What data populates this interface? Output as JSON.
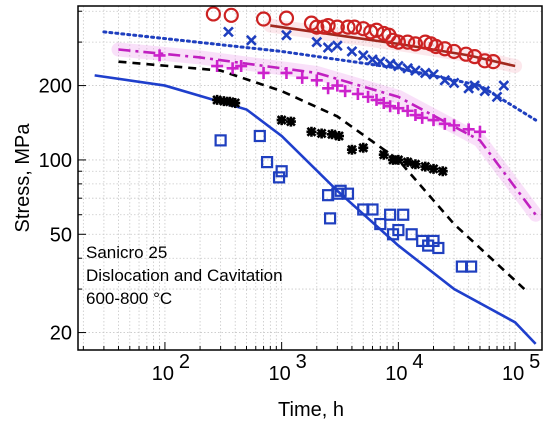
{
  "chart_data": {
    "type": "scatter",
    "title": "",
    "xlabel": "Time, h",
    "ylabel": "Stress, MPa",
    "x_scale": "log",
    "y_scale": "log",
    "xlim": [
      18,
      170000
    ],
    "ylim": [
      17,
      420
    ],
    "grid": true,
    "x_ticks": [
      {
        "value": 100,
        "base": "10",
        "exp": "2"
      },
      {
        "value": 1000,
        "base": "10",
        "exp": "3"
      },
      {
        "value": 10000,
        "base": "10",
        "exp": "4"
      },
      {
        "value": 100000,
        "base": "10",
        "exp": "5"
      }
    ],
    "y_ticks": [
      {
        "value": 20,
        "label": "20"
      },
      {
        "value": 50,
        "label": "50"
      },
      {
        "value": 100,
        "label": "100"
      },
      {
        "value": 200,
        "label": "200"
      }
    ],
    "annotation": [
      "Sanicro 25",
      "Dislocation and Cavitation",
      "600-800 °C"
    ],
    "series": [
      {
        "marker": "circle",
        "color": "#cc2222",
        "points": [
          [
            260,
            390
          ],
          [
            370,
            385
          ],
          [
            700,
            372
          ],
          [
            1100,
            375
          ],
          [
            1800,
            358
          ],
          [
            2000,
            345
          ],
          [
            2300,
            345
          ],
          [
            2500,
            350
          ],
          [
            3000,
            345
          ],
          [
            3700,
            345
          ],
          [
            4200,
            345
          ],
          [
            5000,
            340
          ],
          [
            5800,
            330
          ],
          [
            6500,
            335
          ],
          [
            7500,
            325
          ],
          [
            8300,
            320
          ],
          [
            9000,
            305
          ],
          [
            10000,
            300
          ],
          [
            12000,
            300
          ],
          [
            14000,
            295
          ],
          [
            17000,
            300
          ],
          [
            19000,
            295
          ],
          [
            21000,
            288
          ],
          [
            25000,
            282
          ],
          [
            30000,
            275
          ],
          [
            38000,
            268
          ],
          [
            45000,
            262
          ],
          [
            55000,
            252
          ],
          [
            65000,
            250
          ]
        ]
      },
      {
        "marker": "x",
        "color": "#1f3fbf",
        "points": [
          [
            350,
            330
          ],
          [
            550,
            305
          ],
          [
            1100,
            320
          ],
          [
            2000,
            300
          ],
          [
            2500,
            285
          ],
          [
            3000,
            290
          ],
          [
            4000,
            275
          ],
          [
            5000,
            265
          ],
          [
            6000,
            255
          ],
          [
            7000,
            250
          ],
          [
            8500,
            245
          ],
          [
            10000,
            240
          ],
          [
            12000,
            235
          ],
          [
            14000,
            230
          ],
          [
            17000,
            225
          ],
          [
            20000,
            222
          ],
          [
            25000,
            210
          ],
          [
            30000,
            205
          ],
          [
            40000,
            195
          ],
          [
            45000,
            200
          ],
          [
            55000,
            190
          ],
          [
            70000,
            180
          ],
          [
            80000,
            200
          ]
        ]
      },
      {
        "marker": "plus",
        "color": "#cc22cc",
        "points": [
          [
            90,
            265
          ],
          [
            280,
            240
          ],
          [
            380,
            235
          ],
          [
            450,
            240
          ],
          [
            700,
            225
          ],
          [
            1100,
            225
          ],
          [
            1500,
            215
          ],
          [
            2000,
            210
          ],
          [
            2500,
            195
          ],
          [
            3000,
            200
          ],
          [
            3500,
            190
          ],
          [
            4500,
            185
          ],
          [
            5500,
            180
          ],
          [
            6500,
            175
          ],
          [
            7500,
            170
          ],
          [
            8500,
            165
          ],
          [
            10000,
            162
          ],
          [
            12000,
            158
          ],
          [
            14000,
            152
          ],
          [
            16000,
            148
          ],
          [
            20000,
            145
          ],
          [
            25000,
            140
          ],
          [
            30000,
            138
          ],
          [
            40000,
            133
          ],
          [
            50000,
            130
          ]
        ]
      },
      {
        "marker": "asterisk",
        "color": "#000000",
        "points": [
          [
            280,
            175
          ],
          [
            320,
            173
          ],
          [
            360,
            172
          ],
          [
            400,
            170
          ],
          [
            1000,
            145
          ],
          [
            1200,
            143
          ],
          [
            1800,
            130
          ],
          [
            2200,
            128
          ],
          [
            2700,
            127
          ],
          [
            3100,
            125
          ],
          [
            4000,
            110
          ],
          [
            5000,
            112
          ],
          [
            7500,
            105
          ],
          [
            9000,
            100
          ],
          [
            10000,
            100
          ],
          [
            12000,
            98
          ],
          [
            14000,
            96
          ],
          [
            17000,
            94
          ],
          [
            20000,
            92
          ],
          [
            24000,
            90
          ]
        ]
      },
      {
        "marker": "square",
        "color": "#1f3fbf",
        "points": [
          [
            300,
            120
          ],
          [
            650,
            125
          ],
          [
            750,
            98
          ],
          [
            950,
            85
          ],
          [
            1000,
            90
          ],
          [
            2500,
            72
          ],
          [
            2600,
            58
          ],
          [
            3000,
            73
          ],
          [
            3200,
            75
          ],
          [
            3700,
            73
          ],
          [
            5000,
            63
          ],
          [
            6000,
            63
          ],
          [
            7000,
            55
          ],
          [
            8500,
            60
          ],
          [
            9000,
            50
          ],
          [
            10000,
            52
          ],
          [
            11000,
            60
          ],
          [
            13000,
            50
          ],
          [
            16000,
            47
          ],
          [
            18000,
            45
          ],
          [
            20000,
            47
          ],
          [
            22000,
            44
          ],
          [
            35000,
            37
          ],
          [
            42000,
            37
          ]
        ]
      }
    ],
    "lines": [
      {
        "style": "solid",
        "color": "#a0281e",
        "points": [
          [
            800,
            350
          ],
          [
            3000,
            320
          ],
          [
            10000,
            295
          ],
          [
            40000,
            265
          ],
          [
            100000,
            240
          ]
        ]
      },
      {
        "style": "dotted",
        "color": "#1f3fbf",
        "points": [
          [
            30,
            330
          ],
          [
            100,
            310
          ],
          [
            1000,
            275
          ],
          [
            10000,
            235
          ],
          [
            50000,
            200
          ],
          [
            150000,
            145
          ]
        ]
      },
      {
        "style": "dashdot",
        "color": "#c020c0",
        "points": [
          [
            40,
            280
          ],
          [
            200,
            260
          ],
          [
            2000,
            225
          ],
          [
            10000,
            180
          ],
          [
            50000,
            120
          ],
          [
            150000,
            60
          ]
        ]
      },
      {
        "style": "dashed",
        "color": "#000000",
        "points": [
          [
            40,
            250
          ],
          [
            300,
            230
          ],
          [
            1000,
            190
          ],
          [
            3000,
            150
          ],
          [
            10000,
            100
          ],
          [
            30000,
            55
          ],
          [
            120000,
            30
          ]
        ]
      },
      {
        "style": "solid",
        "color": "#1f3fcc",
        "points": [
          [
            25,
            220
          ],
          [
            100,
            200
          ],
          [
            500,
            160
          ],
          [
            1000,
            125
          ],
          [
            3000,
            75
          ],
          [
            10000,
            45
          ],
          [
            30000,
            30
          ],
          [
            100000,
            22
          ],
          [
            150000,
            18
          ]
        ]
      }
    ]
  }
}
